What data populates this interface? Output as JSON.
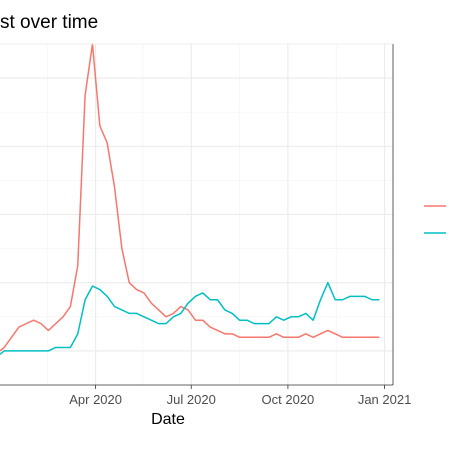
{
  "title": "st over time",
  "chart_data": {
    "type": "line",
    "title": "st over time",
    "xlabel": "Date",
    "ylabel": "",
    "x_ticks": [
      "Apr 2020",
      "Jul 2020",
      "Oct 2020",
      "Jan 2021"
    ],
    "x_tick_values": [
      "2020-04-01",
      "2020-07-01",
      "2020-10-01",
      "2021-01-01"
    ],
    "xlim": [
      "2020-01-01",
      "2021-01-09"
    ],
    "ylim": [
      0,
      100
    ],
    "grid": true,
    "legend_position": "right",
    "series": [
      {
        "color": "#F8766D",
        "x": [
          "2020-01-01",
          "2020-01-05",
          "2020-01-12",
          "2020-01-19",
          "2020-01-26",
          "2020-02-02",
          "2020-02-09",
          "2020-02-16",
          "2020-02-23",
          "2020-03-01",
          "2020-03-08",
          "2020-03-15",
          "2020-03-22",
          "2020-03-29",
          "2020-04-05",
          "2020-04-12",
          "2020-04-19",
          "2020-04-26",
          "2020-05-03",
          "2020-05-10",
          "2020-05-17",
          "2020-05-24",
          "2020-05-31",
          "2020-06-07",
          "2020-06-14",
          "2020-06-21",
          "2020-06-28",
          "2020-07-05",
          "2020-07-12",
          "2020-07-19",
          "2020-07-26",
          "2020-08-02",
          "2020-08-09",
          "2020-08-16",
          "2020-08-23",
          "2020-08-30",
          "2020-09-06",
          "2020-09-13",
          "2020-09-20",
          "2020-09-27",
          "2020-10-04",
          "2020-10-11",
          "2020-10-18",
          "2020-10-25",
          "2020-11-01",
          "2020-11-08",
          "2020-11-15",
          "2020-11-22",
          "2020-11-29",
          "2020-12-06",
          "2020-12-13",
          "2020-12-20",
          "2020-12-27"
        ],
        "values": [
          10,
          11,
          14,
          17,
          18,
          19,
          18,
          16,
          18,
          20,
          23,
          35,
          85,
          100,
          76,
          71,
          58,
          40,
          30,
          28,
          27,
          24,
          22,
          20,
          21,
          23,
          22,
          19,
          19,
          17,
          16,
          15,
          15,
          14,
          14,
          14,
          14,
          14,
          15,
          14,
          14,
          14,
          15,
          14,
          15,
          16,
          15,
          14,
          14,
          14,
          14,
          14,
          14
        ]
      },
      {
        "color": "#00BFC4",
        "x": [
          "2020-01-01",
          "2020-01-05",
          "2020-01-12",
          "2020-01-19",
          "2020-01-26",
          "2020-02-02",
          "2020-02-09",
          "2020-02-16",
          "2020-02-23",
          "2020-03-01",
          "2020-03-08",
          "2020-03-15",
          "2020-03-22",
          "2020-03-29",
          "2020-04-05",
          "2020-04-12",
          "2020-04-19",
          "2020-04-26",
          "2020-05-03",
          "2020-05-10",
          "2020-05-17",
          "2020-05-24",
          "2020-05-31",
          "2020-06-07",
          "2020-06-14",
          "2020-06-21",
          "2020-06-28",
          "2020-07-05",
          "2020-07-12",
          "2020-07-19",
          "2020-07-26",
          "2020-08-02",
          "2020-08-09",
          "2020-08-16",
          "2020-08-23",
          "2020-08-30",
          "2020-09-06",
          "2020-09-13",
          "2020-09-20",
          "2020-09-27",
          "2020-10-04",
          "2020-10-11",
          "2020-10-18",
          "2020-10-25",
          "2020-11-01",
          "2020-11-08",
          "2020-11-15",
          "2020-11-22",
          "2020-11-29",
          "2020-12-06",
          "2020-12-13",
          "2020-12-20",
          "2020-12-27"
        ],
        "values": [
          9,
          10,
          10,
          10,
          10,
          10,
          10,
          10,
          11,
          11,
          11,
          15,
          25,
          29,
          28,
          26,
          23,
          22,
          21,
          21,
          20,
          19,
          18,
          18,
          20,
          21,
          24,
          26,
          27,
          25,
          25,
          22,
          21,
          19,
          19,
          18,
          18,
          18,
          20,
          19,
          20,
          20,
          21,
          19,
          25,
          30,
          25,
          25,
          26,
          26,
          26,
          25,
          25
        ]
      }
    ]
  }
}
